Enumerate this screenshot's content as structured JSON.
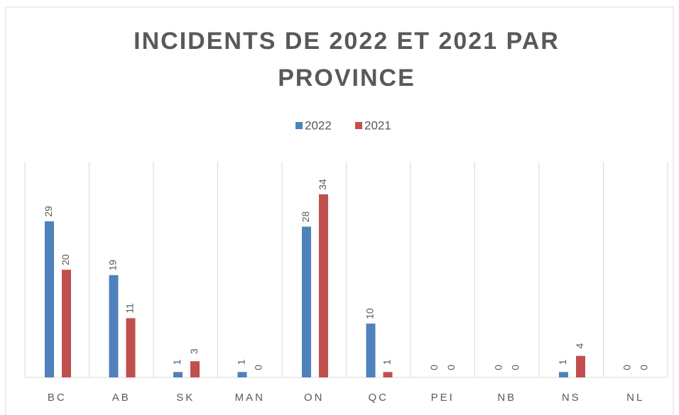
{
  "chart_data": {
    "type": "bar",
    "title": "INCIDENTS DE 2022 ET 2021 PAR PROVINCE",
    "categories": [
      "BC",
      "AB",
      "SK",
      "MAN",
      "ON",
      "QC",
      "PEI",
      "NB",
      "NS",
      "NL"
    ],
    "series": [
      {
        "name": "2022",
        "color": "#4f81bd",
        "values": [
          29,
          19,
          1,
          1,
          28,
          10,
          0,
          0,
          1,
          0
        ]
      },
      {
        "name": "2021",
        "color": "#c0504d",
        "values": [
          20,
          11,
          3,
          0,
          34,
          1,
          0,
          0,
          4,
          0
        ]
      }
    ],
    "legend": "top"
  }
}
